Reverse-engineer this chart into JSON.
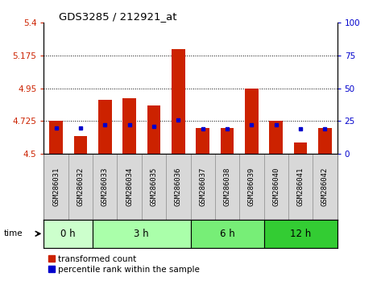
{
  "title": "GDS3285 / 212921_at",
  "samples": [
    "GSM286031",
    "GSM286032",
    "GSM286033",
    "GSM286034",
    "GSM286035",
    "GSM286036",
    "GSM286037",
    "GSM286038",
    "GSM286039",
    "GSM286040",
    "GSM286041",
    "GSM286042"
  ],
  "transformed_count": [
    4.73,
    4.62,
    4.87,
    4.88,
    4.83,
    5.22,
    4.68,
    4.68,
    4.95,
    4.73,
    4.58,
    4.68
  ],
  "percentile_rank": [
    20,
    20,
    22,
    22,
    21,
    26,
    19,
    19,
    22,
    22,
    19,
    19
  ],
  "groups": [
    {
      "label": "0 h",
      "start": 0,
      "end": 2
    },
    {
      "label": "3 h",
      "start": 2,
      "end": 6
    },
    {
      "label": "6 h",
      "start": 6,
      "end": 9
    },
    {
      "label": "12 h",
      "start": 9,
      "end": 12
    }
  ],
  "group_colors": [
    "#ccffcc",
    "#aaffaa",
    "#77ee77",
    "#33cc33"
  ],
  "ylim_left": [
    4.5,
    5.4
  ],
  "ylim_right": [
    0,
    100
  ],
  "yticks_left": [
    4.5,
    4.725,
    4.95,
    5.175,
    5.4
  ],
  "yticks_right": [
    0,
    25,
    50,
    75,
    100
  ],
  "bar_color": "#cc2200",
  "dot_color": "#0000cc",
  "baseline": 4.5,
  "bar_width": 0.55,
  "grid_lines": [
    4.725,
    4.95,
    5.175
  ],
  "tick_label_color_left": "#cc2200",
  "tick_label_color_right": "#0000cc",
  "xtick_bg_color": "#d8d8d8",
  "xtick_border_color": "#888888"
}
